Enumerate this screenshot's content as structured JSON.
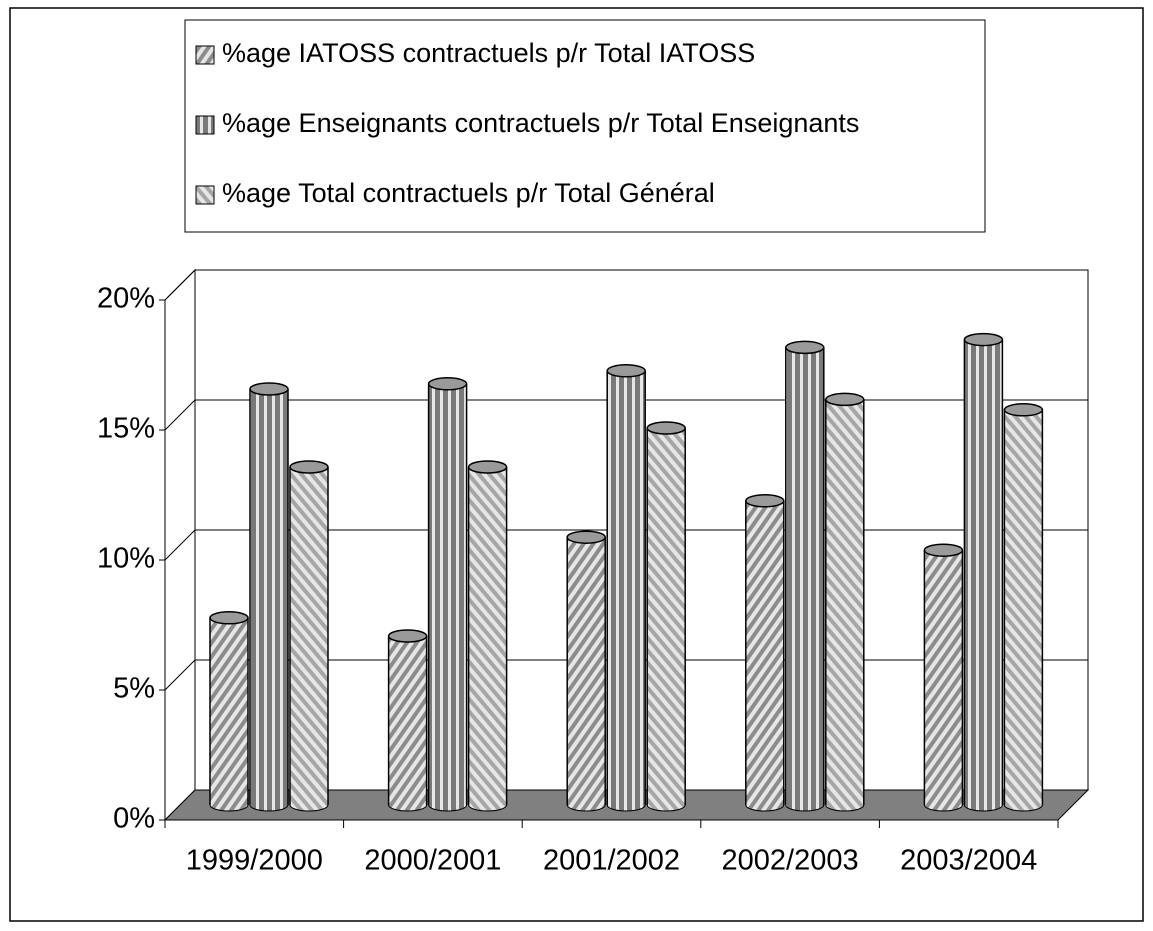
{
  "chart_data": {
    "type": "bar3d",
    "categories": [
      "1999/2000",
      "2000/2001",
      "2001/2002",
      "2002/2003",
      "2003/2004"
    ],
    "series": [
      {
        "name": "%age IATOSS contractuels p/r Total IATOSS",
        "color": "#8c8c8c",
        "pattern": "diagonal",
        "values": [
          7.2,
          6.5,
          10.3,
          11.7,
          9.8
        ]
      },
      {
        "name": "%age Enseignants contractuels p/r Total Enseignants",
        "color": "#7a7a7a",
        "pattern": "vertical",
        "values": [
          16.0,
          16.2,
          16.7,
          17.6,
          17.9
        ]
      },
      {
        "name": "%age Total contractuels p/r Total Général",
        "color": "#a6a6a6",
        "pattern": "antidiagonal",
        "values": [
          13.0,
          13.0,
          14.5,
          15.6,
          15.2
        ]
      }
    ],
    "ylim": [
      0,
      20
    ],
    "yticks": [
      {
        "value": 0,
        "label": "0%"
      },
      {
        "value": 5,
        "label": "5%"
      },
      {
        "value": 10,
        "label": "10%"
      },
      {
        "value": 15,
        "label": "15%"
      },
      {
        "value": 20,
        "label": "20%"
      }
    ],
    "grid": true,
    "legend": "top"
  }
}
